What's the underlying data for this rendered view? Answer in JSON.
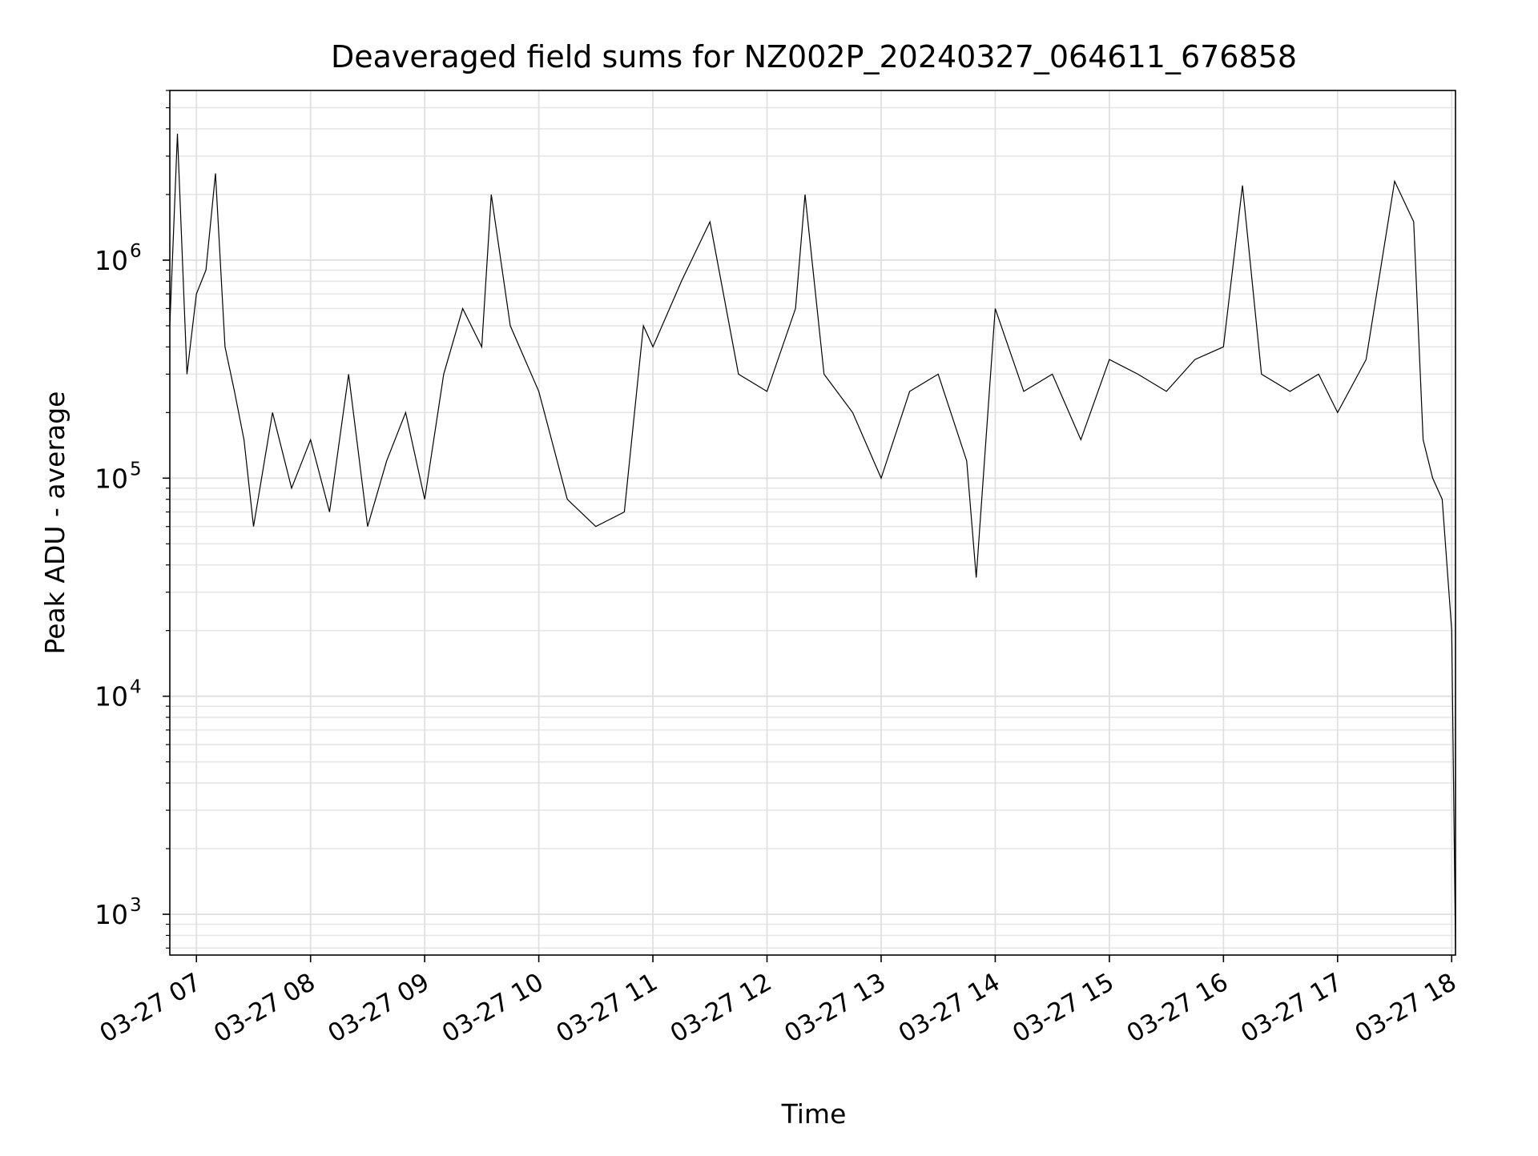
{
  "chart_data": {
    "type": "line",
    "title": "Deaveraged field sums for NZ002P_20240327_064611_676858",
    "xlabel": "Time",
    "ylabel": "Peak ADU - average",
    "yscale": "log",
    "ylim": [
      650,
      6000000
    ],
    "xlim": [
      "2024-03-27 06:46",
      "2024-03-27 18:02"
    ],
    "grid": true,
    "line_color": "#000000",
    "x_ticks": [
      {
        "label": "03-27 07",
        "time": "2024-03-27 07:00"
      },
      {
        "label": "03-27 08",
        "time": "2024-03-27 08:00"
      },
      {
        "label": "03-27 09",
        "time": "2024-03-27 09:00"
      },
      {
        "label": "03-27 10",
        "time": "2024-03-27 10:00"
      },
      {
        "label": "03-27 11",
        "time": "2024-03-27 11:00"
      },
      {
        "label": "03-27 12",
        "time": "2024-03-27 12:00"
      },
      {
        "label": "03-27 13",
        "time": "2024-03-27 13:00"
      },
      {
        "label": "03-27 14",
        "time": "2024-03-27 14:00"
      },
      {
        "label": "03-27 15",
        "time": "2024-03-27 15:00"
      },
      {
        "label": "03-27 16",
        "time": "2024-03-27 16:00"
      },
      {
        "label": "03-27 17",
        "time": "2024-03-27 17:00"
      },
      {
        "label": "03-27 18",
        "time": "2024-03-27 18:00"
      }
    ],
    "y_ticks": [
      {
        "base": "10",
        "exp": "3",
        "value": 1000
      },
      {
        "base": "10",
        "exp": "4",
        "value": 10000
      },
      {
        "base": "10",
        "exp": "5",
        "value": 100000
      },
      {
        "base": "10",
        "exp": "6",
        "value": 1000000
      }
    ],
    "series": [
      {
        "points": [
          [
            "2024-03-27 06:46",
            500000
          ],
          [
            "2024-03-27 06:50",
            3800000
          ],
          [
            "2024-03-27 06:55",
            300000
          ],
          [
            "2024-03-27 07:00",
            700000
          ],
          [
            "2024-03-27 07:05",
            900000
          ],
          [
            "2024-03-27 07:10",
            2500000
          ],
          [
            "2024-03-27 07:15",
            400000
          ],
          [
            "2024-03-27 07:20",
            250000
          ],
          [
            "2024-03-27 07:25",
            150000
          ],
          [
            "2024-03-27 07:30",
            60000
          ],
          [
            "2024-03-27 07:40",
            200000
          ],
          [
            "2024-03-27 07:50",
            90000
          ],
          [
            "2024-03-27 08:00",
            150000
          ],
          [
            "2024-03-27 08:10",
            70000
          ],
          [
            "2024-03-27 08:20",
            300000
          ],
          [
            "2024-03-27 08:30",
            60000
          ],
          [
            "2024-03-27 08:40",
            120000
          ],
          [
            "2024-03-27 08:50",
            200000
          ],
          [
            "2024-03-27 09:00",
            80000
          ],
          [
            "2024-03-27 09:10",
            300000
          ],
          [
            "2024-03-27 09:20",
            600000
          ],
          [
            "2024-03-27 09:30",
            400000
          ],
          [
            "2024-03-27 09:35",
            2000000
          ],
          [
            "2024-03-27 09:45",
            500000
          ],
          [
            "2024-03-27 10:00",
            250000
          ],
          [
            "2024-03-27 10:15",
            80000
          ],
          [
            "2024-03-27 10:30",
            60000
          ],
          [
            "2024-03-27 10:45",
            70000
          ],
          [
            "2024-03-27 10:55",
            500000
          ],
          [
            "2024-03-27 11:00",
            400000
          ],
          [
            "2024-03-27 11:15",
            800000
          ],
          [
            "2024-03-27 11:30",
            1500000
          ],
          [
            "2024-03-27 11:45",
            300000
          ],
          [
            "2024-03-27 12:00",
            250000
          ],
          [
            "2024-03-27 12:15",
            600000
          ],
          [
            "2024-03-27 12:20",
            2000000
          ],
          [
            "2024-03-27 12:30",
            300000
          ],
          [
            "2024-03-27 12:45",
            200000
          ],
          [
            "2024-03-27 13:00",
            100000
          ],
          [
            "2024-03-27 13:15",
            250000
          ],
          [
            "2024-03-27 13:30",
            300000
          ],
          [
            "2024-03-27 13:45",
            120000
          ],
          [
            "2024-03-27 13:50",
            35000
          ],
          [
            "2024-03-27 14:00",
            600000
          ],
          [
            "2024-03-27 14:15",
            250000
          ],
          [
            "2024-03-27 14:30",
            300000
          ],
          [
            "2024-03-27 14:45",
            150000
          ],
          [
            "2024-03-27 15:00",
            350000
          ],
          [
            "2024-03-27 15:15",
            300000
          ],
          [
            "2024-03-27 15:30",
            250000
          ],
          [
            "2024-03-27 15:45",
            350000
          ],
          [
            "2024-03-27 16:00",
            400000
          ],
          [
            "2024-03-27 16:10",
            2200000
          ],
          [
            "2024-03-27 16:20",
            300000
          ],
          [
            "2024-03-27 16:35",
            250000
          ],
          [
            "2024-03-27 16:50",
            300000
          ],
          [
            "2024-03-27 17:00",
            200000
          ],
          [
            "2024-03-27 17:15",
            350000
          ],
          [
            "2024-03-27 17:30",
            2300000
          ],
          [
            "2024-03-27 17:40",
            1500000
          ],
          [
            "2024-03-27 17:45",
            150000
          ],
          [
            "2024-03-27 17:50",
            100000
          ],
          [
            "2024-03-27 17:55",
            80000
          ],
          [
            "2024-03-27 18:00",
            20000
          ],
          [
            "2024-03-27 18:02",
            700
          ]
        ]
      }
    ]
  }
}
